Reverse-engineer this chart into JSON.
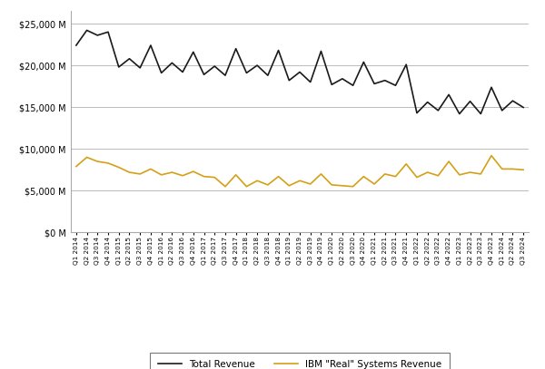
{
  "labels": [
    "Q1 2014",
    "Q2 2014",
    "Q3 2014",
    "Q4 2014",
    "Q1 2015",
    "Q2 2015",
    "Q3 2015",
    "Q4 2015",
    "Q1 2016",
    "Q2 2016",
    "Q3 2016",
    "Q4 2016",
    "Q1 2017",
    "Q2 2017",
    "Q3 2017",
    "Q4 2017",
    "Q1 2018",
    "Q2 2018",
    "Q3 2018",
    "Q4 2018",
    "Q1 2019",
    "Q2 2019",
    "Q3 2019",
    "Q4 2019",
    "Q1 2020",
    "Q2 2020",
    "Q3 2020",
    "Q4 2020",
    "Q1 2021",
    "Q2 2021",
    "Q3 2021",
    "Q4 2021",
    "Q1 2022",
    "Q2 2022",
    "Q3 2022",
    "Q4 2022",
    "Q1 2023",
    "Q2 2023",
    "Q3 2023",
    "Q4 2023",
    "Q1 2024",
    "Q2 2024",
    "Q3 2024"
  ],
  "total_revenue": [
    22400,
    24200,
    23600,
    24000,
    19800,
    20800,
    19700,
    22400,
    19100,
    20300,
    19200,
    21600,
    18900,
    19900,
    18800,
    22000,
    19100,
    20000,
    18800,
    21800,
    18200,
    19200,
    18000,
    21700,
    17700,
    18400,
    17600,
    20400,
    17800,
    18200,
    17600,
    20100,
    14300,
    15600,
    14600,
    16500,
    14200,
    15700,
    14200,
    17380,
    14600,
    15760,
    14970
  ],
  "ibm_real_revenue": [
    7900,
    9000,
    8500,
    8300,
    7800,
    7200,
    7000,
    7600,
    6900,
    7200,
    6800,
    7300,
    6700,
    6600,
    5500,
    6900,
    5500,
    6200,
    5700,
    6700,
    5600,
    6200,
    5800,
    7000,
    5700,
    5600,
    5500,
    6700,
    5800,
    7000,
    6700,
    8200,
    6600,
    7200,
    6800,
    8500,
    6900,
    7200,
    7000,
    9200,
    7600,
    7600,
    7500
  ],
  "total_revenue_color": "#1a1a1a",
  "ibm_real_revenue_color": "#d4a017",
  "background_color": "#ffffff",
  "grid_color": "#bbbbbb",
  "ylabel_values": [
    0,
    5000,
    10000,
    15000,
    20000,
    25000
  ],
  "legend_total": "Total Revenue",
  "legend_ibm": "IBM \"Real\" Systems Revenue",
  "ylim": [
    0,
    26500
  ],
  "line_width": 1.2
}
